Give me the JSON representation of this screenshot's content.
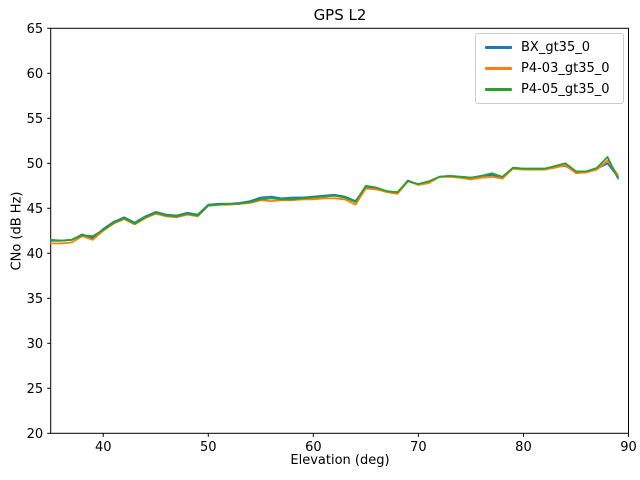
{
  "chart_data": {
    "type": "line",
    "title": "GPS L2",
    "xlabel": "Elevation (deg)",
    "ylabel": "CNo (dB Hz)",
    "xlim": [
      35,
      90
    ],
    "ylim": [
      20,
      65
    ],
    "xticks": [
      40,
      50,
      60,
      70,
      80,
      90
    ],
    "yticks": [
      20,
      25,
      30,
      35,
      40,
      45,
      50,
      55,
      60,
      65
    ],
    "grid": false,
    "legend_position": "upper right",
    "legend_border_color": "#cccccc",
    "x": [
      35,
      36,
      37,
      38,
      39,
      40,
      41,
      42,
      43,
      44,
      45,
      46,
      47,
      48,
      49,
      50,
      51,
      52,
      53,
      54,
      55,
      56,
      57,
      58,
      59,
      60,
      61,
      62,
      63,
      64,
      65,
      66,
      67,
      68,
      69,
      70,
      71,
      72,
      73,
      74,
      75,
      76,
      77,
      78,
      79,
      80,
      81,
      82,
      83,
      84,
      85,
      86,
      87,
      88,
      89
    ],
    "series": [
      {
        "name": "BX_gt35_0",
        "color": "#1f77b4",
        "values": [
          41.4,
          41.4,
          41.5,
          42.1,
          41.7,
          42.7,
          43.5,
          44.0,
          43.4,
          44.1,
          44.6,
          44.3,
          44.2,
          44.5,
          44.3,
          45.4,
          45.5,
          45.5,
          45.6,
          45.8,
          46.2,
          46.3,
          46.1,
          46.2,
          46.2,
          46.3,
          46.4,
          46.5,
          46.3,
          45.8,
          47.4,
          47.2,
          46.9,
          46.7,
          48.1,
          47.6,
          47.9,
          48.5,
          48.6,
          48.5,
          48.4,
          48.6,
          48.7,
          48.3,
          49.5,
          49.4,
          49.4,
          49.4,
          49.6,
          49.7,
          49.0,
          49.0,
          49.4,
          50.0,
          48.5
        ]
      },
      {
        "name": "P4-03_gt35_0",
        "color": "#ff7f0e",
        "values": [
          41.1,
          41.1,
          41.2,
          41.9,
          41.5,
          42.5,
          43.3,
          43.8,
          43.2,
          43.9,
          44.4,
          44.1,
          44.0,
          44.3,
          44.1,
          45.3,
          45.4,
          45.4,
          45.5,
          45.6,
          45.9,
          45.8,
          45.9,
          45.9,
          46.0,
          46.0,
          46.1,
          46.1,
          46.0,
          45.4,
          47.2,
          47.1,
          46.8,
          46.6,
          48.0,
          47.6,
          47.8,
          48.5,
          48.5,
          48.4,
          48.2,
          48.4,
          48.5,
          48.3,
          49.4,
          49.3,
          49.3,
          49.3,
          49.5,
          49.8,
          48.9,
          49.0,
          49.3,
          50.3,
          48.7
        ]
      },
      {
        "name": "P4-05_gt35_0",
        "color": "#2ca02c",
        "values": [
          41.5,
          41.4,
          41.5,
          42.0,
          41.9,
          42.6,
          43.4,
          43.9,
          43.3,
          44.0,
          44.5,
          44.2,
          44.1,
          44.4,
          44.2,
          45.3,
          45.4,
          45.5,
          45.5,
          45.7,
          46.0,
          46.1,
          46.0,
          46.0,
          46.1,
          46.2,
          46.3,
          46.4,
          46.2,
          45.7,
          47.5,
          47.3,
          46.9,
          46.8,
          48.0,
          47.7,
          48.0,
          48.5,
          48.6,
          48.5,
          48.4,
          48.6,
          48.9,
          48.5,
          49.5,
          49.4,
          49.4,
          49.4,
          49.7,
          50.0,
          49.1,
          49.1,
          49.5,
          50.7,
          48.3
        ]
      }
    ]
  }
}
